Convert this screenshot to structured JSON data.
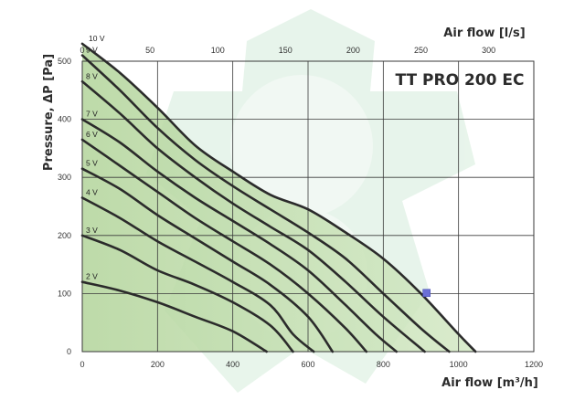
{
  "chart_data": {
    "type": "line",
    "title": "TT PRO 200 EC",
    "xlabel": "Air flow [m³/h]",
    "x2label": "Air flow [l/s]",
    "ylabel": "Pressure, ΔP [Pa]",
    "xlim": [
      0,
      1200
    ],
    "x2lim": [
      0,
      333.3
    ],
    "ylim": [
      0,
      500
    ],
    "x_ticks": [
      "0",
      "200",
      "400",
      "600",
      "800",
      "1000",
      "1200"
    ],
    "x2_ticks": [
      "0",
      "50",
      "100",
      "150",
      "200",
      "250",
      "300"
    ],
    "y_ticks": [
      "0",
      "100",
      "200",
      "300",
      "400",
      "500"
    ],
    "grid": true,
    "colors": {
      "curve": "#2b2b2b",
      "fill": "#bcd9a8",
      "marker": "#6b6fd6",
      "background_text": "#cfe9d9"
    },
    "series": [
      {
        "name": "10 V",
        "points": [
          [
            0,
            530
          ],
          [
            100,
            480
          ],
          [
            200,
            420
          ],
          [
            300,
            355
          ],
          [
            400,
            310
          ],
          [
            500,
            270
          ],
          [
            600,
            245
          ],
          [
            700,
            205
          ],
          [
            800,
            160
          ],
          [
            900,
            100
          ],
          [
            1000,
            30
          ],
          [
            1045,
            0
          ]
        ]
      },
      {
        "name": "9 V",
        "points": [
          [
            0,
            510
          ],
          [
            100,
            450
          ],
          [
            200,
            385
          ],
          [
            300,
            330
          ],
          [
            400,
            285
          ],
          [
            500,
            245
          ],
          [
            600,
            205
          ],
          [
            700,
            160
          ],
          [
            800,
            100
          ],
          [
            900,
            40
          ],
          [
            975,
            0
          ]
        ]
      },
      {
        "name": "8 V",
        "points": [
          [
            0,
            465
          ],
          [
            100,
            410
          ],
          [
            200,
            350
          ],
          [
            300,
            300
          ],
          [
            400,
            255
          ],
          [
            500,
            215
          ],
          [
            600,
            175
          ],
          [
            700,
            120
          ],
          [
            800,
            60
          ],
          [
            910,
            0
          ]
        ]
      },
      {
        "name": "7 V",
        "points": [
          [
            0,
            400
          ],
          [
            100,
            360
          ],
          [
            200,
            310
          ],
          [
            300,
            265
          ],
          [
            400,
            225
          ],
          [
            500,
            185
          ],
          [
            600,
            140
          ],
          [
            700,
            80
          ],
          [
            780,
            30
          ],
          [
            835,
            0
          ]
        ]
      },
      {
        "name": "6 V",
        "points": [
          [
            0,
            365
          ],
          [
            100,
            320
          ],
          [
            200,
            275
          ],
          [
            300,
            230
          ],
          [
            400,
            190
          ],
          [
            500,
            150
          ],
          [
            600,
            100
          ],
          [
            700,
            40
          ],
          [
            755,
            0
          ]
        ]
      },
      {
        "name": "5 V",
        "points": [
          [
            0,
            315
          ],
          [
            100,
            280
          ],
          [
            200,
            235
          ],
          [
            300,
            195
          ],
          [
            400,
            155
          ],
          [
            500,
            115
          ],
          [
            600,
            60
          ],
          [
            665,
            0
          ]
        ]
      },
      {
        "name": "4 V",
        "points": [
          [
            0,
            265
          ],
          [
            100,
            230
          ],
          [
            200,
            190
          ],
          [
            300,
            155
          ],
          [
            400,
            120
          ],
          [
            500,
            80
          ],
          [
            560,
            30
          ],
          [
            615,
            0
          ]
        ]
      },
      {
        "name": "3 V",
        "points": [
          [
            0,
            200
          ],
          [
            100,
            175
          ],
          [
            200,
            140
          ],
          [
            300,
            115
          ],
          [
            400,
            85
          ],
          [
            500,
            45
          ],
          [
            560,
            0
          ]
        ]
      },
      {
        "name": "2 V",
        "points": [
          [
            0,
            120
          ],
          [
            100,
            105
          ],
          [
            200,
            85
          ],
          [
            300,
            60
          ],
          [
            400,
            35
          ],
          [
            490,
            0
          ]
        ]
      }
    ],
    "marker_point": [
      915,
      101
    ]
  }
}
